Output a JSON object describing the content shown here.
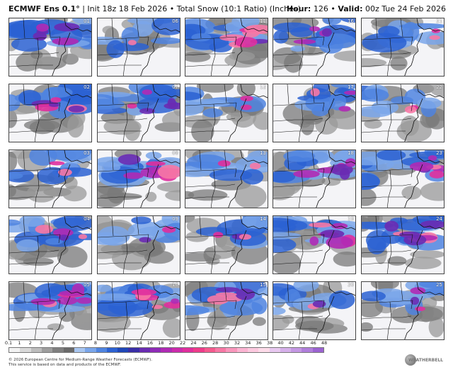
{
  "header": {
    "model": "ECMWF Ens 0.1°",
    "init": "Init 18z 18 Feb 2026",
    "product": "Total Snow (10:1 Ratio) (Inches)",
    "hour_label": "Hour:",
    "hour_value": "126",
    "valid_label": "Valid:",
    "valid_value": "00z Tue 24 Feb 2026"
  },
  "panels": [
    {
      "member": "01",
      "intensity": 0.8
    },
    {
      "member": "06",
      "intensity": 0.15
    },
    {
      "member": "11",
      "intensity": 0.85
    },
    {
      "member": "16",
      "intensity": 0.55
    },
    {
      "member": "21",
      "intensity": 0.2
    },
    {
      "member": "02",
      "intensity": 0.7
    },
    {
      "member": "07",
      "intensity": 0.6
    },
    {
      "member": "12",
      "intensity": 0.2
    },
    {
      "member": "17",
      "intensity": 0.35
    },
    {
      "member": "22",
      "intensity": 0.3
    },
    {
      "member": "03",
      "intensity": 0.3
    },
    {
      "member": "08",
      "intensity": 0.9
    },
    {
      "member": "13",
      "intensity": 0.3
    },
    {
      "member": "18",
      "intensity": 0.75
    },
    {
      "member": "23",
      "intensity": 0.7
    },
    {
      "member": "04",
      "intensity": 0.55
    },
    {
      "member": "09",
      "intensity": 0.25
    },
    {
      "member": "14",
      "intensity": 0.35
    },
    {
      "member": "19",
      "intensity": 0.85
    },
    {
      "member": "24",
      "intensity": 0.95
    },
    {
      "member": "05",
      "intensity": 0.85
    },
    {
      "member": "10",
      "intensity": 0.9
    },
    {
      "member": "15",
      "intensity": 0.65
    },
    {
      "member": "20",
      "intensity": 0.25
    },
    {
      "member": "25",
      "intensity": 0.35
    }
  ],
  "colorbar": {
    "ticks": [
      "0.1",
      "1",
      "2",
      "3",
      "4",
      "5",
      "6",
      "7",
      "8",
      "9",
      "10",
      "12",
      "14",
      "16",
      "18",
      "20",
      "22",
      "24",
      "26",
      "28",
      "30",
      "32",
      "34",
      "36",
      "38",
      "40",
      "42",
      "44",
      "46",
      "48"
    ],
    "colors": [
      "#f2f2f2",
      "#d9d9d9",
      "#bdbdbd",
      "#9e9e9e",
      "#7f7f7f",
      "#6a6a6a",
      "#a9c6f0",
      "#7aa6ea",
      "#4f84e0",
      "#2c62d2",
      "#1f47b8",
      "#3a2fa8",
      "#6a2bb2",
      "#8f2bb8",
      "#b02ab5",
      "#cc2bac",
      "#e02f9d",
      "#ee3c8b",
      "#f45a8e",
      "#f778a5",
      "#f996bc",
      "#fbb4d2",
      "#fcc9df",
      "#fddbe9",
      "#e8c8f0",
      "#d6b0ea",
      "#c497e3",
      "#b07edb",
      "#9b63d1"
    ]
  },
  "footer": {
    "line1": "© 2026 European Centre for Medium-Range Weather Forecasts (ECMWF).",
    "line2": "This service is based on data and products of the ECMWF.",
    "logo": "WEATHERBELL"
  }
}
